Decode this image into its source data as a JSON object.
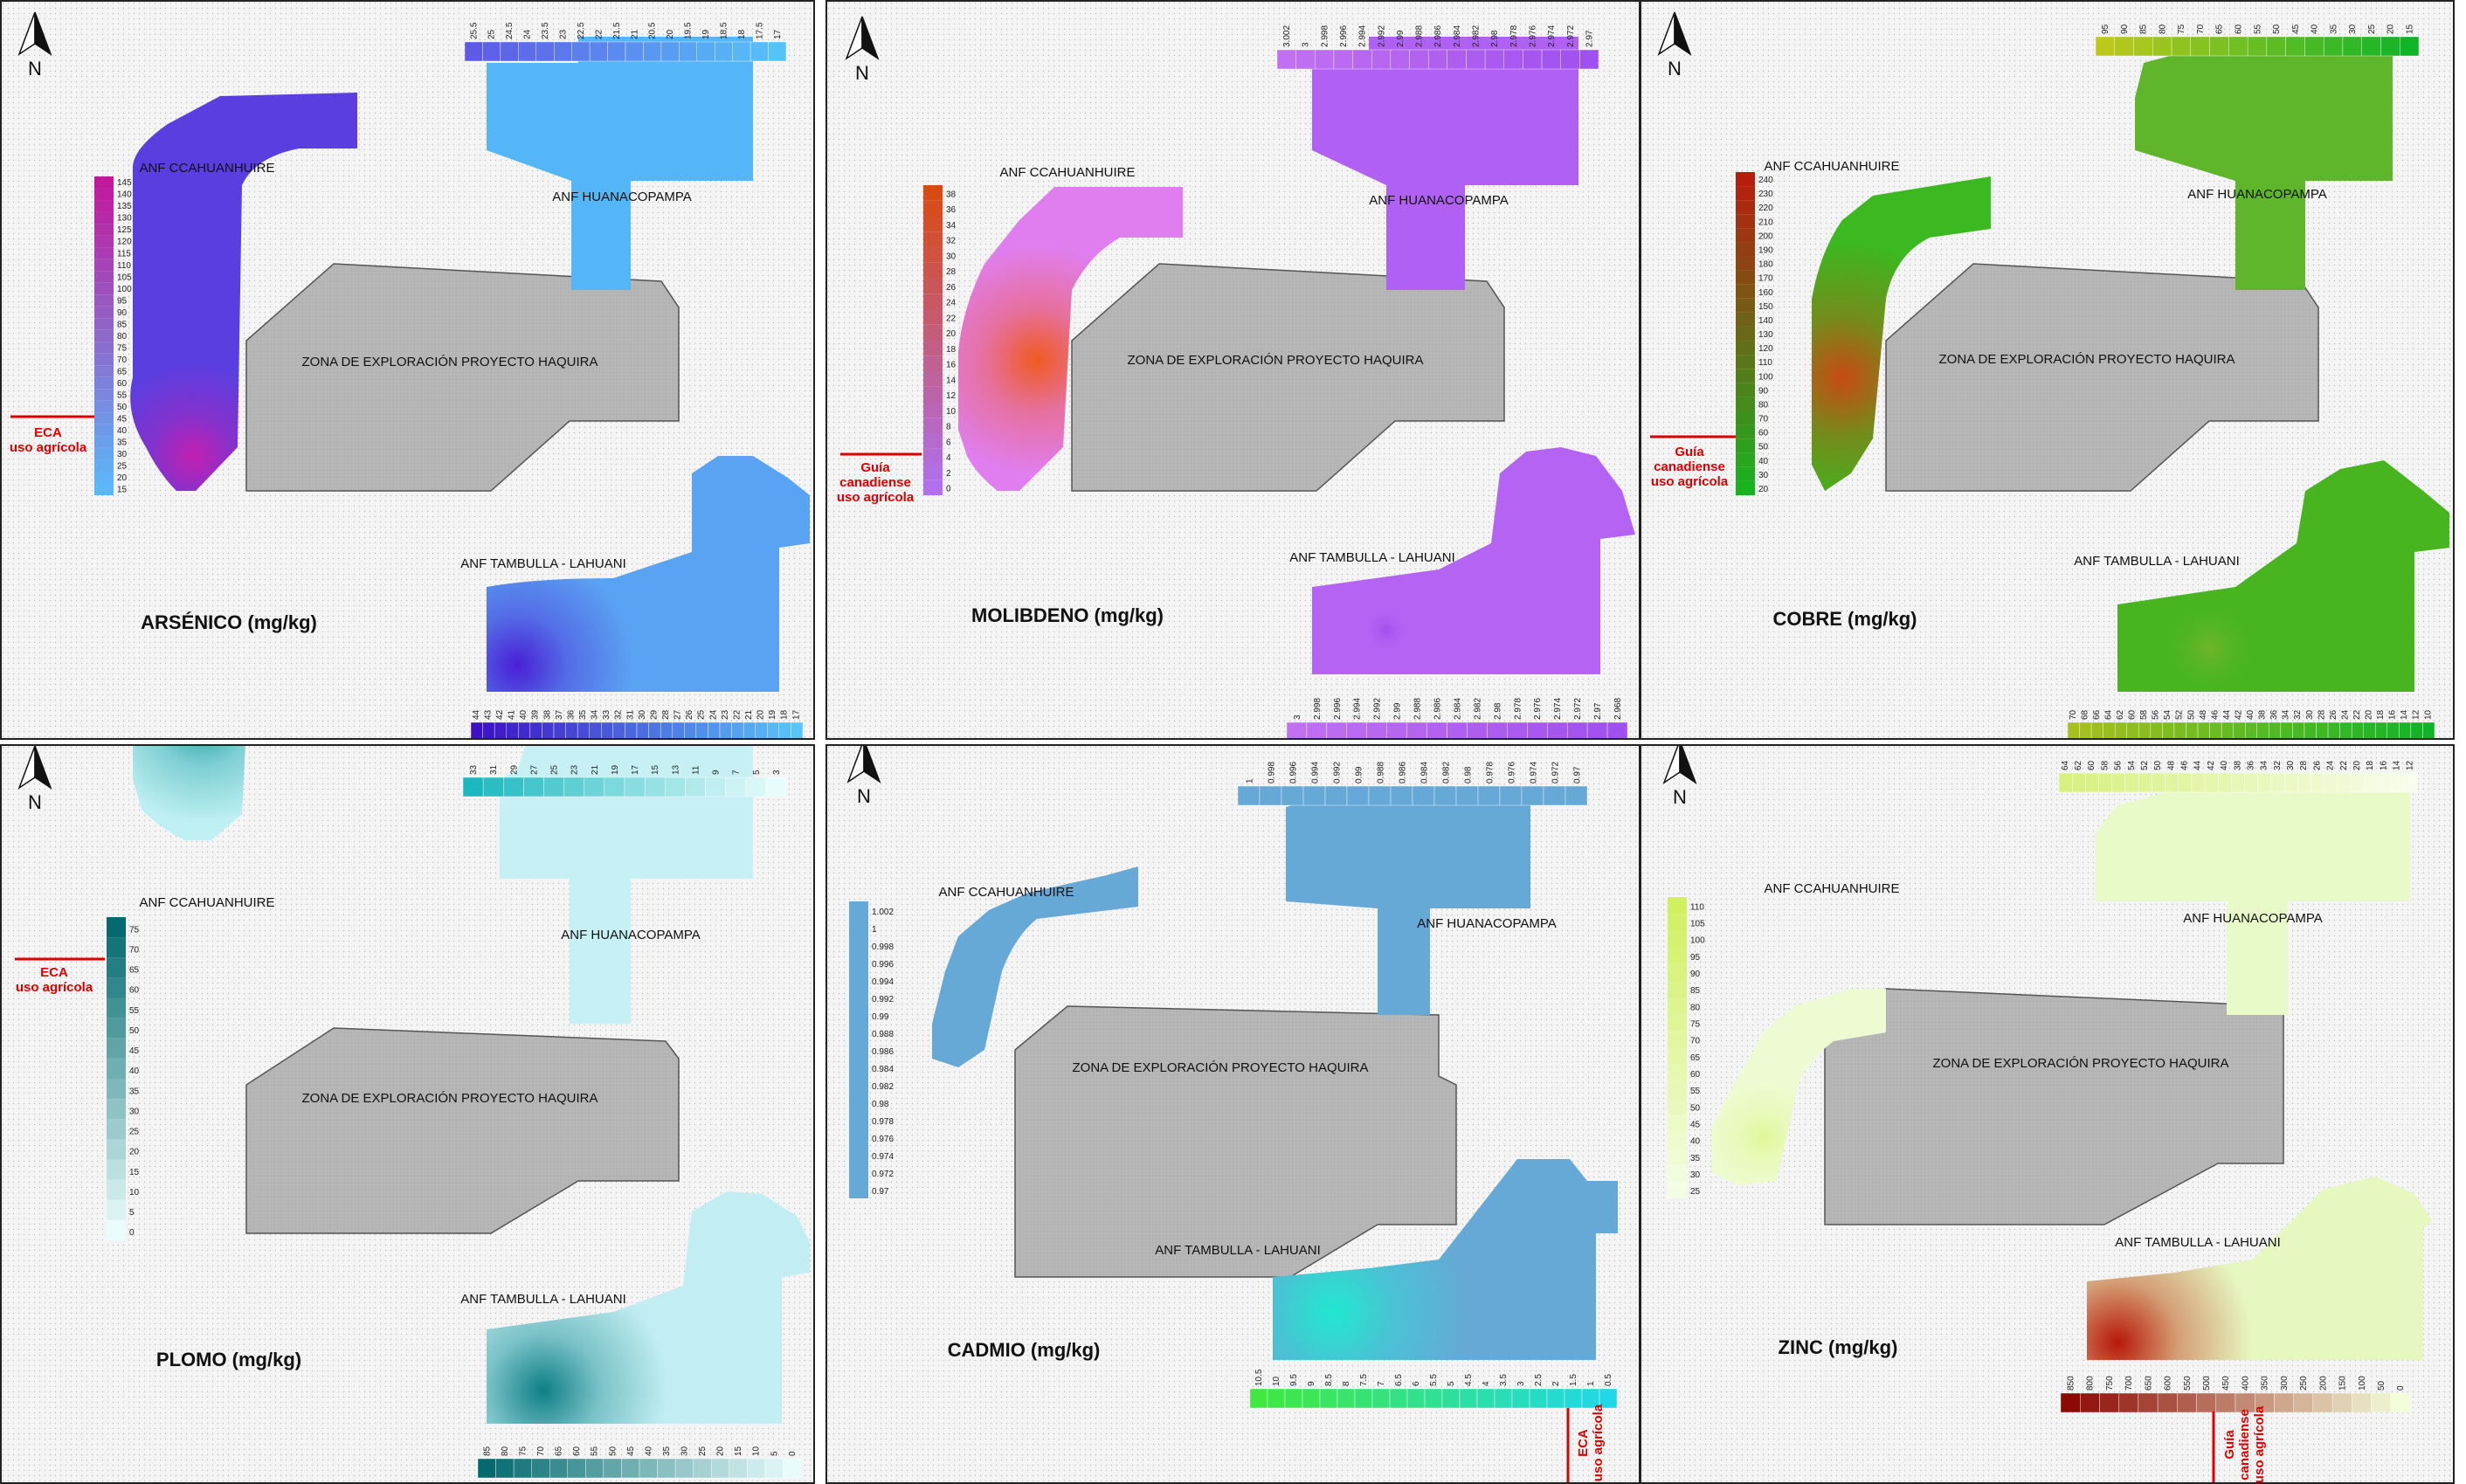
{
  "panels": [
    {
      "id": "arsenico",
      "title": "ARSÉNICO (mg/kg)",
      "labels": {
        "ccahuanhuire": "ANF CCAHUANHUIRE",
        "huanacopampa": "ANF HUANACOPAMPA",
        "zona": "ZONA DE EXPLORACIÓN PROYECTO HAQUIRA",
        "tambulla": "ANF TAMBULLA - LAHUANI"
      },
      "north": "N",
      "guide": [
        "ECA",
        "uso agrícola"
      ],
      "colors": {
        "ccahuanhuire": "#5a3ee0",
        "ccahuanhuire_hot": "#c21fb0",
        "huanacopampa": "#55b6f7",
        "tambulla": "#5aa2f2",
        "tambulla_hot": "#4a1fd6"
      },
      "legends": {
        "left": {
          "ticks": [
            "145",
            "140",
            "135",
            "130",
            "125",
            "120",
            "115",
            "110",
            "105",
            "100",
            "95",
            "90",
            "85",
            "80",
            "75",
            "70",
            "65",
            "60",
            "55",
            "50",
            "45",
            "40",
            "35",
            "30",
            "25",
            "20",
            "15"
          ],
          "from": "#c2189e",
          "to": "#5ab8f8"
        },
        "top": {
          "ticks": [
            "25.5",
            "25",
            "24.5",
            "24",
            "23.5",
            "23",
            "22.5",
            "22",
            "21.5",
            "21",
            "20.5",
            "20",
            "19.5",
            "19",
            "18.5",
            "18",
            "17.5",
            "17"
          ],
          "from": "#5f5ae6",
          "to": "#55c2f8"
        },
        "bottom": {
          "ticks": [
            "44",
            "43",
            "42",
            "41",
            "40",
            "39",
            "38",
            "37",
            "36",
            "35",
            "34",
            "33",
            "32",
            "31",
            "30",
            "29",
            "28",
            "27",
            "26",
            "25",
            "24",
            "23",
            "22",
            "21",
            "20",
            "19",
            "18",
            "17"
          ],
          "from": "#3d10c8",
          "to": "#5ac4f8"
        }
      }
    },
    {
      "id": "molibdeno",
      "title": "MOLIBDENO (mg/kg)",
      "labels": {
        "ccahuanhuire": "ANF CCAHUANHUIRE",
        "huanacopampa": "ANF HUANACOPAMPA",
        "zona": "ZONA DE EXPLORACIÓN PROYECTO HAQUIRA",
        "tambulla": "ANF TAMBULLA - LAHUANI"
      },
      "north": "N",
      "guide": [
        "Guía",
        "canadiense",
        "uso agrícola"
      ],
      "colors": {
        "ccahuanhuire": "#e07ef0",
        "ccahuanhuire_hot": "#f05a20",
        "huanacopampa": "#b060f2",
        "tambulla": "#b563f3",
        "tambulla_hot": "#a050ee"
      },
      "legends": {
        "left": {
          "ticks": [
            "38",
            "36",
            "34",
            "32",
            "30",
            "28",
            "26",
            "24",
            "22",
            "20",
            "18",
            "16",
            "14",
            "12",
            "10",
            "8",
            "6",
            "4",
            "2",
            "0"
          ],
          "from": "#d84a10",
          "to": "#b070f0"
        },
        "top": {
          "ticks": [
            "3.002",
            "3",
            "2.998",
            "2.996",
            "2.994",
            "2.992",
            "2.99",
            "2.988",
            "2.986",
            "2.984",
            "2.982",
            "2.98",
            "2.978",
            "2.976",
            "2.974",
            "2.972",
            "2.97"
          ],
          "from": "#c070f0",
          "to": "#a050ee"
        },
        "bottom": {
          "ticks": [
            "3",
            "2.998",
            "2.996",
            "2.994",
            "2.992",
            "2.99",
            "2.988",
            "2.986",
            "2.984",
            "2.982",
            "2.98",
            "2.978",
            "2.976",
            "2.974",
            "2.972",
            "2.97",
            "2.968"
          ],
          "from": "#c070f0",
          "to": "#a050ee"
        }
      }
    },
    {
      "id": "cobre",
      "title": "COBRE (mg/kg)",
      "labels": {
        "ccahuanhuire": "ANF CCAHUANHUIRE",
        "huanacopampa": "ANF HUANACOPAMPA",
        "zona": "ZONA DE EXPLORACIÓN PROYECTO HAQUIRA",
        "tambulla": "ANF TAMBULLA - LAHUANI"
      },
      "north": "N",
      "guide": [
        "Guía",
        "canadiense",
        "uso agrícola"
      ],
      "colors": {
        "ccahuanhuire": "#3cb820",
        "ccahuanhuire_hot": "#c84a14",
        "huanacopampa": "#5fb62a",
        "tambulla": "#48b520",
        "tambulla_hot": "#70b52a"
      },
      "legends": {
        "left": {
          "ticks": [
            "240",
            "230",
            "220",
            "210",
            "200",
            "190",
            "180",
            "170",
            "160",
            "150",
            "140",
            "130",
            "120",
            "110",
            "100",
            "90",
            "80",
            "70",
            "60",
            "50",
            "40",
            "30",
            "20"
          ],
          "from": "#b81c0c",
          "to": "#18b420"
        },
        "top": {
          "ticks": [
            "95",
            "90",
            "85",
            "80",
            "75",
            "70",
            "65",
            "60",
            "55",
            "50",
            "45",
            "40",
            "35",
            "30",
            "25",
            "20",
            "15"
          ],
          "from": "#bcc81c",
          "to": "#10b428"
        },
        "bottom": {
          "ticks": [
            "70",
            "68",
            "66",
            "64",
            "62",
            "60",
            "58",
            "56",
            "54",
            "52",
            "50",
            "48",
            "46",
            "44",
            "42",
            "40",
            "38",
            "36",
            "34",
            "32",
            "30",
            "28",
            "26",
            "24",
            "22",
            "20",
            "18",
            "16",
            "14",
            "12",
            "10"
          ],
          "from": "#a8c01c",
          "to": "#10b428"
        }
      }
    },
    {
      "id": "plomo",
      "title": "PLOMO (mg/kg)",
      "labels": {
        "ccahuanhuire": "ANF CCAHUANHUIRE",
        "huanacopampa": "ANF HUANACOPAMPA",
        "zona": "ZONA DE EXPLORACIÓN PROYECTO HAQUIRA",
        "tambulla": "ANF TAMBULLA - LAHUANI"
      },
      "north": "N",
      "guide": [
        "ECA",
        "uso agrícola"
      ],
      "colors": {
        "ccahuanhuire": "#bff0f3",
        "ccahuanhuire_hot": "#1a9aa0",
        "huanacopampa": "#c6f0f4",
        "tambulla": "#c2eef3",
        "tambulla_hot": "#0e7f86"
      },
      "legends": {
        "left": {
          "ticks": [
            "75",
            "70",
            "65",
            "60",
            "55",
            "50",
            "45",
            "40",
            "35",
            "30",
            "25",
            "20",
            "15",
            "10",
            "5",
            "0"
          ],
          "from": "#046a70",
          "to": "#eafcfc"
        },
        "top": {
          "ticks": [
            "33",
            "31",
            "29",
            "27",
            "25",
            "23",
            "21",
            "19",
            "17",
            "15",
            "13",
            "11",
            "9",
            "7",
            "5",
            "3"
          ],
          "from": "#1cb8c0",
          "to": "#e8fcfc"
        },
        "bottom": {
          "ticks": [
            "85",
            "80",
            "75",
            "70",
            "65",
            "60",
            "55",
            "50",
            "45",
            "40",
            "35",
            "30",
            "25",
            "20",
            "15",
            "10",
            "5",
            "0"
          ],
          "from": "#046a70",
          "to": "#e8fcfc"
        }
      }
    },
    {
      "id": "cadmio",
      "title": "CADMIO (mg/kg)",
      "labels": {
        "ccahuanhuire": "ANF CCAHUANHUIRE",
        "huanacopampa": "ANF HUANACOPAMPA",
        "zona": "ZONA DE EXPLORACIÓN PROYECTO HAQUIRA",
        "tambulla": "ANF TAMBULLA - LAHUANI"
      },
      "north": "N",
      "guide": [
        "ECA",
        "uso agrícola"
      ],
      "colors": {
        "ccahuanhuire": "#66a9d6",
        "ccahuanhuire_hot": "#66a9d6",
        "huanacopampa": "#66a9d6",
        "tambulla": "#66a9d6",
        "tambulla_hot": "#20e8d0"
      },
      "legends": {
        "left": {
          "ticks": [
            "1.002",
            "1",
            "0.998",
            "0.996",
            "0.994",
            "0.992",
            "0.99",
            "0.988",
            "0.986",
            "0.984",
            "0.982",
            "0.98",
            "0.978",
            "0.976",
            "0.974",
            "0.972",
            "0.97"
          ],
          "from": "#66a9d6",
          "to": "#66a9d6"
        },
        "top": {
          "ticks": [
            "1",
            "0.998",
            "0.996",
            "0.994",
            "0.992",
            "0.99",
            "0.988",
            "0.986",
            "0.984",
            "0.982",
            "0.98",
            "0.978",
            "0.976",
            "0.974",
            "0.972",
            "0.97"
          ],
          "from": "#66a9d6",
          "to": "#66a9d6"
        },
        "bottom": {
          "ticks": [
            "10.5",
            "10",
            "9.5",
            "9",
            "8.5",
            "8",
            "7.5",
            "7",
            "6.5",
            "6",
            "5.5",
            "5",
            "4.5",
            "4",
            "3.5",
            "3",
            "2.5",
            "2",
            "1.5",
            "1",
            "0.5"
          ],
          "from": "#40e840",
          "to": "#20d8e8"
        }
      }
    },
    {
      "id": "zinc",
      "title": "ZINC (mg/kg)",
      "labels": {
        "ccahuanhuire": "ANF CCAHUANHUIRE",
        "huanacopampa": "ANF HUANACOPAMPA",
        "zona": "ZONA DE EXPLORACIÓN PROYECTO HAQUIRA",
        "tambulla": "ANF TAMBULLA - LAHUANI"
      },
      "north": "N",
      "guide": [
        "Guía",
        "canadiense",
        "uso agrícola"
      ],
      "colors": {
        "ccahuanhuire": "#eefbd2",
        "ccahuanhuire_hot": "#dff89a",
        "huanacopampa": "#e8fac8",
        "tambulla": "#e6f7c0",
        "tambulla_hot": "#b81808"
      },
      "legends": {
        "left": {
          "ticks": [
            "110",
            "105",
            "100",
            "95",
            "90",
            "85",
            "80",
            "75",
            "70",
            "65",
            "60",
            "55",
            "50",
            "45",
            "40",
            "35",
            "30",
            "25"
          ],
          "from": "#d0f060",
          "to": "#f4fde4"
        },
        "top": {
          "ticks": [
            "64",
            "62",
            "60",
            "58",
            "56",
            "54",
            "52",
            "50",
            "48",
            "46",
            "44",
            "42",
            "40",
            "38",
            "36",
            "34",
            "32",
            "30",
            "28",
            "26",
            "24",
            "22",
            "20",
            "18",
            "16",
            "14",
            "12"
          ],
          "from": "#d8f080",
          "to": "#f6fdea"
        },
        "bottom": {
          "ticks": [
            "850",
            "800",
            "750",
            "700",
            "650",
            "600",
            "550",
            "500",
            "450",
            "400",
            "350",
            "300",
            "250",
            "200",
            "150",
            "100",
            "50",
            "0"
          ],
          "from": "#8c0a04",
          "to": "#f2fcd8"
        }
      }
    }
  ]
}
